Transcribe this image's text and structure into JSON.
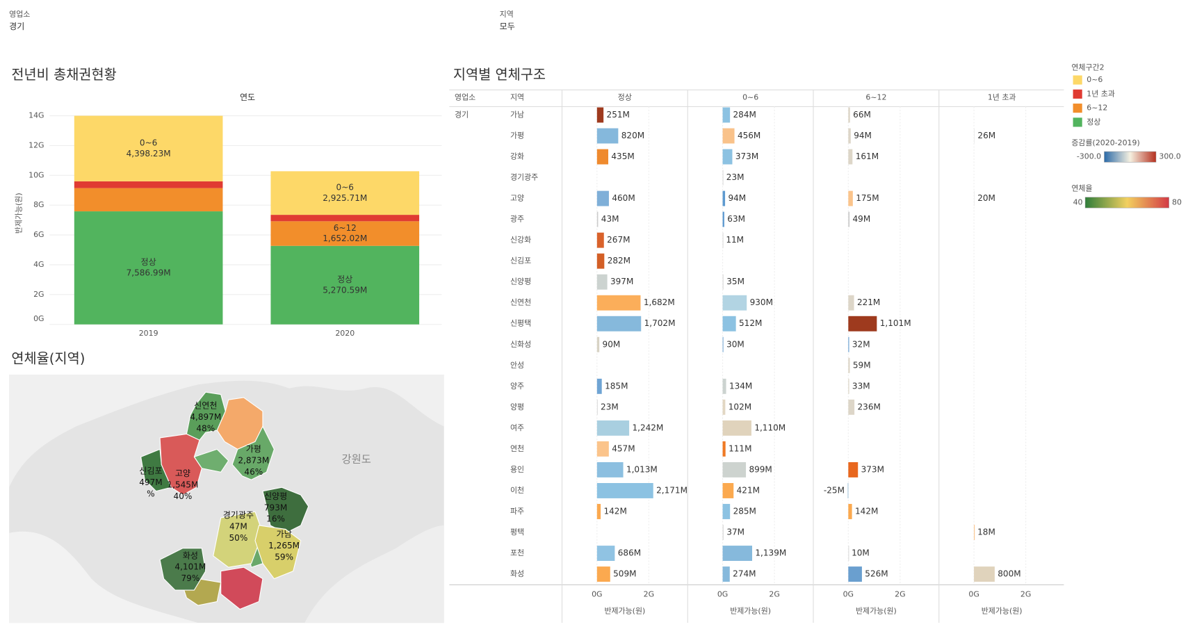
{
  "filters": [
    {
      "label": "영업소",
      "value": "경기"
    },
    {
      "label": "지역",
      "value": "모두"
    }
  ],
  "chart_data": [
    {
      "type": "stacked_bar",
      "title": "전년비 총채권현황",
      "x_header": "연도",
      "y_label": "반제가능(원)",
      "categories": [
        "2019",
        "2020"
      ],
      "series": [
        {
          "name": "정상",
          "color": "#52b45e",
          "values": [
            7586.99,
            5270.59
          ],
          "value_labels": [
            "7,586.99M",
            "5,270.59M"
          ]
        },
        {
          "name": "6~12",
          "color": "#f28e2b",
          "values": [
            1560,
            1652.02
          ],
          "value_labels": [
            null,
            "1,652.02M"
          ]
        },
        {
          "name": "1년 초과",
          "color": "#e03b32",
          "values": [
            455,
            430
          ],
          "value_labels": [
            null,
            null
          ]
        },
        {
          "name": "0~6",
          "color": "#fdd868",
          "values": [
            4398.23,
            2925.71
          ],
          "value_labels": [
            "4,398.23M",
            "2,925.71M"
          ]
        }
      ],
      "legend_title": "연체구간2",
      "ylim": [
        0,
        14000
      ],
      "yticks": [
        {
          "value": 0,
          "label": "0G"
        },
        {
          "value": 2000,
          "label": "2G"
        },
        {
          "value": 4000,
          "label": "4G"
        },
        {
          "value": 6000,
          "label": "6G"
        },
        {
          "value": 8000,
          "label": "8G"
        },
        {
          "value": 10000,
          "label": "10G"
        },
        {
          "value": 12000,
          "label": "12G"
        },
        {
          "value": 14000,
          "label": "14G"
        }
      ],
      "grid": true
    },
    {
      "type": "faceted_bar",
      "title": "지역별 연체구조",
      "row_headers": [
        "영업소",
        "지역"
      ],
      "group": "경기",
      "categories": [
        "가남",
        "가평",
        "강화",
        "경기광주",
        "고양",
        "광주",
        "신강화",
        "신김포",
        "신양평",
        "신연천",
        "신평택",
        "신화성",
        "안성",
        "양주",
        "양평",
        "여주",
        "연천",
        "용인",
        "이천",
        "파주",
        "평택",
        "포천",
        "화성"
      ],
      "series": [
        {
          "name": "정상",
          "values": [
            251,
            820,
            435,
            null,
            460,
            43,
            267,
            282,
            397,
            1682,
            1702,
            90,
            null,
            185,
            23,
            1242,
            457,
            1013,
            2171,
            142,
            null,
            686,
            509
          ],
          "value_labels": [
            "251M",
            "820M",
            "435M",
            null,
            "460M",
            "43M",
            "267M",
            "282M",
            "397M",
            "1,682M",
            "1,702M",
            "90M",
            null,
            "185M",
            "23M",
            "1,242M",
            "457M",
            "1,013M",
            "2,171M",
            "142M",
            null,
            "686M",
            "509M"
          ],
          "colors": [
            "#9e3a1e",
            "#85b8dc",
            "#ef8a2e",
            null,
            "#7fafd8",
            "#cccccc",
            "#d9622b",
            "#d35f26",
            "#ccd3d0",
            "#fbae5a",
            "#86b9dc",
            "#d8d3c5",
            null,
            "#6fa4d4",
            "#dddddd",
            "#a9cfe0",
            "#fbc48b",
            "#8cbfe0",
            "#8cc2e2",
            "#fba94f",
            null,
            "#90c3e3",
            "#fba94f"
          ]
        },
        {
          "name": "0~6",
          "values": [
            284,
            456,
            373,
            23,
            94,
            63,
            11,
            null,
            35,
            930,
            512,
            30,
            null,
            134,
            102,
            1110,
            111,
            899,
            421,
            285,
            37,
            1139,
            274
          ],
          "value_labels": [
            "284M",
            "456M",
            "373M",
            "23M",
            "94M",
            "63M",
            "11M",
            null,
            "35M",
            "930M",
            "512M",
            "30M",
            null,
            "134M",
            "102M",
            "1,110M",
            "111M",
            "899M",
            "421M",
            "285M",
            "37M",
            "1,139M",
            "274M"
          ],
          "colors": [
            "#8cc2e2",
            "#f9c28a",
            "#8cc2e2",
            "#dddddd",
            "#5e9ad0",
            "#5e9ad0",
            "#dddddd",
            null,
            "#dddddd",
            "#b2d4e3",
            "#8cc2e2",
            "#7fafd8",
            null,
            "#ccd3d0",
            "#e2d7c3",
            "#e0d3bc",
            "#ef7a25",
            "#cdd3cf",
            "#fba94f",
            "#8cc2e2",
            "#dddddd",
            "#86b9dc",
            "#86b9dc"
          ]
        },
        {
          "name": "6~12",
          "values": [
            66,
            94,
            161,
            null,
            175,
            49,
            null,
            null,
            null,
            221,
            1101,
            32,
            59,
            33,
            236,
            null,
            null,
            373,
            -25,
            142,
            null,
            10,
            526
          ],
          "value_labels": [
            "66M",
            "94M",
            "161M",
            null,
            "175M",
            "49M",
            null,
            null,
            null,
            "221M",
            "1,101M",
            "32M",
            "59M",
            "33M",
            "236M",
            null,
            null,
            "373M",
            "-25M",
            "142M",
            null,
            "10M",
            "526M"
          ],
          "colors": [
            "#ddd6c8",
            "#ddd6c8",
            "#ddd6c8",
            null,
            "#fbc48b",
            "#cccccc",
            null,
            null,
            null,
            "#ddd6c8",
            "#9e3a1e",
            "#6fa4d4",
            "#ddd6c8",
            "#ddd6c8",
            "#ddd6c8",
            null,
            null,
            "#e8671e",
            "#aac8de",
            "#fba94f",
            null,
            "#dddddd",
            "#6a9fcf"
          ]
        },
        {
          "name": "1년 초과",
          "values": [
            null,
            26,
            null,
            null,
            20,
            null,
            null,
            null,
            null,
            null,
            null,
            null,
            null,
            null,
            null,
            null,
            null,
            null,
            null,
            null,
            18,
            null,
            800
          ],
          "value_labels": [
            null,
            "26M",
            null,
            null,
            "20M",
            null,
            null,
            null,
            null,
            null,
            null,
            null,
            null,
            null,
            null,
            null,
            null,
            null,
            null,
            null,
            "18M",
            null,
            "800M"
          ],
          "colors": [
            null,
            "#eeeeee",
            null,
            null,
            "#eeeeee",
            null,
            null,
            null,
            null,
            null,
            null,
            null,
            null,
            null,
            null,
            null,
            null,
            null,
            null,
            null,
            "#fbc48b",
            null,
            "#e0d3bc"
          ]
        }
      ],
      "xlim": [
        -1350,
        3500
      ],
      "xticks": [
        {
          "value": 0,
          "label": "0G"
        },
        {
          "value": 2000,
          "label": "2G"
        }
      ],
      "x_label": "반제가능(원)",
      "color_scale": {
        "title": "증감률(2020-2019)",
        "range": [
          {
            "value": -300,
            "label": "-300.0"
          },
          {
            "value": 300,
            "label": "300.0"
          }
        ],
        "colors": [
          "#2b6aa8",
          "#f5f0e0",
          "#b5301f"
        ]
      }
    },
    {
      "type": "map",
      "title": "연체율(지역)",
      "base_labels": [
        "강원도"
      ],
      "regions": [
        {
          "name": "신연천",
          "value": 4897,
          "value_label": "4,897M",
          "rate": 48,
          "rate_label": "48%",
          "color": "#5a9e5a"
        },
        {
          "name": "가평",
          "value": 2873,
          "value_label": "2,873M",
          "rate": 46,
          "rate_label": "46%",
          "color": "#68a968"
        },
        {
          "name": "신김포",
          "value": 497,
          "value_label": "497M",
          "rate": null,
          "rate_label": "%",
          "color": "#3f7a42"
        },
        {
          "name": "고양",
          "value": 1545,
          "value_label": "1,545M",
          "rate": 40,
          "rate_label": "40%",
          "color": "#d95a59"
        },
        {
          "name": "신양평",
          "value": 793,
          "value_label": "793M",
          "rate": 16,
          "rate_label": "16%",
          "color": "#3e6e3e"
        },
        {
          "name": "경기광주",
          "value": 47,
          "value_label": "47M",
          "rate": 50,
          "rate_label": "50%",
          "color": "#d3d37a"
        },
        {
          "name": "가남",
          "value": 1265,
          "value_label": "1,265M",
          "rate": 59,
          "rate_label": "59%",
          "color": "#d8cf6a"
        },
        {
          "name": "화성",
          "value": 4101,
          "value_label": "4,101M",
          "rate": 79,
          "rate_label": "79%",
          "color": "#4b7b4b"
        }
      ],
      "color_scale": {
        "title": "연체율",
        "range": [
          40,
          80
        ],
        "colors": [
          "#2e7d3a",
          "#f2d060",
          "#d33a45"
        ]
      }
    }
  ]
}
